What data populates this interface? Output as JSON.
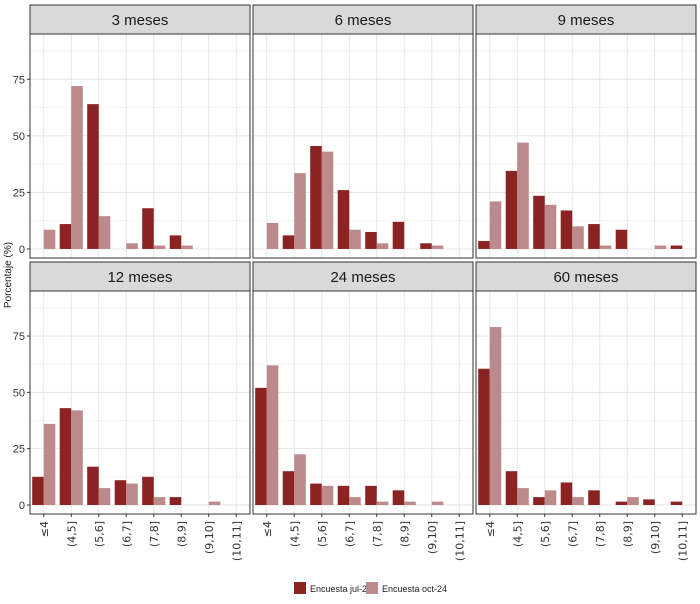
{
  "chart_data": {
    "type": "bar",
    "ylabel": "Porcentaje (%)",
    "yticks": [
      0,
      25,
      50,
      75
    ],
    "ylim": [
      -4,
      95
    ],
    "categories": [
      "≤4",
      "(4,5]",
      "(5,6]",
      "(6,7]",
      "(7,8]",
      "(8,9]",
      "(9,10]",
      "(10,11]"
    ],
    "grid": true,
    "legend_position": "bottom",
    "series_meta": [
      {
        "name": "Encuesta jul-24",
        "color": "#8b2323"
      },
      {
        "name": "Encuesta oct-24",
        "color": "#bc8a8a"
      }
    ],
    "panels": [
      {
        "title": "3 meses",
        "series": [
          {
            "name": "Encuesta jul-24",
            "values": [
              0,
              11,
              64,
              0,
              18,
              6,
              0,
              0
            ]
          },
          {
            "name": "Encuesta oct-24",
            "values": [
              8.5,
              72,
              14.5,
              2.5,
              1.5,
              1.5,
              0,
              0
            ]
          }
        ]
      },
      {
        "title": "6 meses",
        "series": [
          {
            "name": "Encuesta jul-24",
            "values": [
              0,
              6,
              45.5,
              26,
              7.5,
              12,
              2.5,
              0
            ]
          },
          {
            "name": "Encuesta oct-24",
            "values": [
              11.5,
              33.5,
              43,
              8.5,
              2.5,
              0,
              1.5,
              0
            ]
          }
        ]
      },
      {
        "title": "9 meses",
        "series": [
          {
            "name": "Encuesta jul-24",
            "values": [
              3.5,
              34.5,
              23.5,
              17,
              11,
              8.5,
              0,
              1.5
            ]
          },
          {
            "name": "Encuesta oct-24",
            "values": [
              21,
              47,
              19.5,
              10,
              1.5,
              0,
              1.5,
              0
            ]
          }
        ]
      },
      {
        "title": "12 meses",
        "series": [
          {
            "name": "Encuesta jul-24",
            "values": [
              12.5,
              43,
              17,
              11,
              12.5,
              3.5,
              0,
              0
            ]
          },
          {
            "name": "Encuesta oct-24",
            "values": [
              36,
              42,
              7.5,
              9.5,
              3.5,
              0,
              1.5,
              0
            ]
          }
        ]
      },
      {
        "title": "24 meses",
        "series": [
          {
            "name": "Encuesta jul-24",
            "values": [
              52,
              15,
              9.5,
              8.5,
              8.5,
              6.5,
              0,
              0
            ]
          },
          {
            "name": "Encuesta oct-24",
            "values": [
              62,
              22.5,
              8.5,
              3.5,
              1.5,
              1.5,
              1.5,
              0
            ]
          }
        ]
      },
      {
        "title": "60 meses",
        "series": [
          {
            "name": "Encuesta jul-24",
            "values": [
              60.5,
              15,
              3.5,
              10,
              6.5,
              1.5,
              2.5,
              1.5
            ]
          },
          {
            "name": "Encuesta oct-24",
            "values": [
              79,
              7.5,
              6.5,
              3.5,
              0,
              3.5,
              0,
              0
            ]
          }
        ]
      }
    ]
  }
}
